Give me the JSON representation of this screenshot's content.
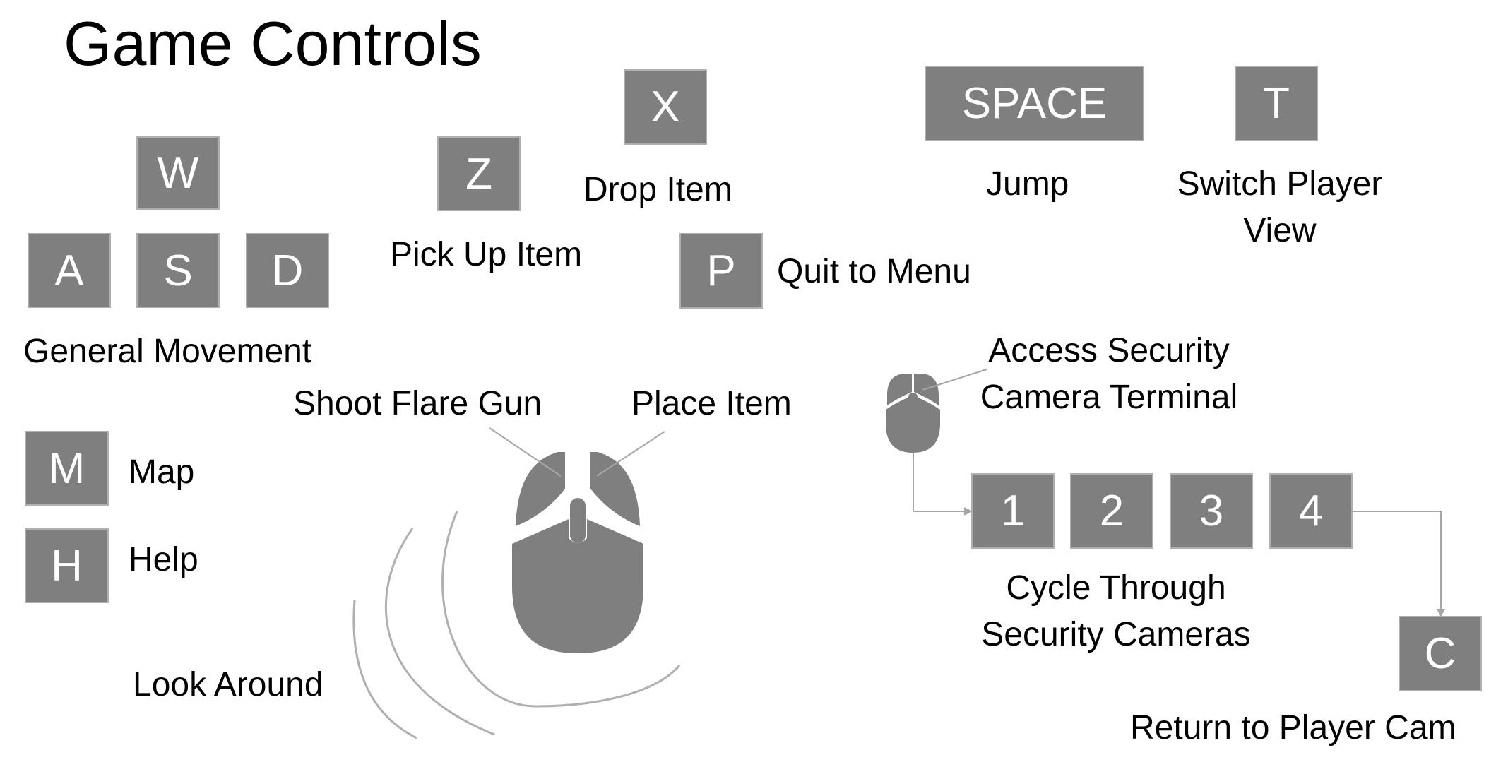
{
  "title": "Game Controls",
  "colors": {
    "key_fill": "#7f7f7f",
    "key_border": "#b0b0b0",
    "line": "#a6a6a6"
  },
  "keys": {
    "w": "W",
    "a": "A",
    "s": "S",
    "d": "D",
    "z": "Z",
    "x": "X",
    "p": "P",
    "space": "SPACE",
    "t": "T",
    "m": "M",
    "h": "H",
    "one": "1",
    "two": "2",
    "three": "3",
    "four": "4",
    "c": "C"
  },
  "labels": {
    "general_movement": "General Movement",
    "pick_up_item": "Pick Up Item",
    "drop_item": "Drop Item",
    "quit_to_menu": "Quit to Menu",
    "jump": "Jump",
    "switch_player_view": [
      "Switch Player",
      "View"
    ],
    "map": "Map",
    "help": "Help",
    "shoot_flare_gun": "Shoot Flare Gun",
    "place_item": "Place Item",
    "look_around": "Look Around",
    "access_security": [
      "Access Security",
      "Camera Terminal"
    ],
    "cycle_cameras": [
      "Cycle Through",
      "Security Cameras"
    ],
    "return_player_cam": "Return to Player Cam"
  }
}
